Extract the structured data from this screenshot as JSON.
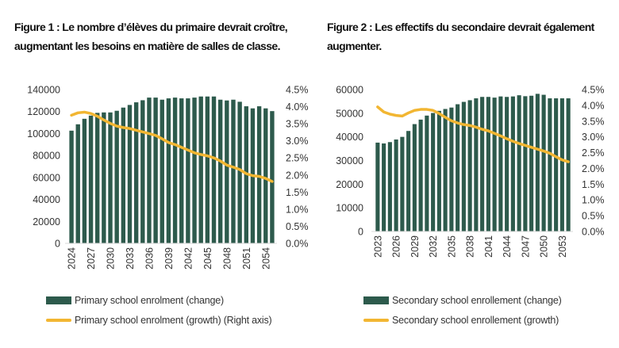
{
  "colors": {
    "bar": "#2d5a4c",
    "line": "#f2b632"
  },
  "chart_data": [
    {
      "type": "bar+line",
      "title": "Figure 1 : Le nombre d’élèves du primaire devrait croître, augmentant les besoins en matière de salles de classe.",
      "x": [
        2024,
        2025,
        2026,
        2027,
        2028,
        2029,
        2030,
        2031,
        2032,
        2033,
        2034,
        2035,
        2036,
        2037,
        2038,
        2039,
        2040,
        2041,
        2042,
        2043,
        2044,
        2045,
        2046,
        2047,
        2048,
        2049,
        2050,
        2051,
        2052,
        2053,
        2054,
        2055
      ],
      "x_tick_labels": [
        "2024",
        "2027",
        "2030",
        "2033",
        "2036",
        "2039",
        "2042",
        "2045",
        "2048",
        "2051",
        "2054"
      ],
      "y_left_ticks": [
        "0",
        "20000",
        "40000",
        "60000",
        "80000",
        "100000",
        "120000",
        "140000"
      ],
      "y_right_ticks": [
        "0.0%",
        "0.5%",
        "1.0%",
        "1.5%",
        "2.0%",
        "2.5%",
        "3.0%",
        "3.5%",
        "4.0%",
        "4.5%"
      ],
      "ylim_left": [
        0,
        140000
      ],
      "ylim_right": [
        0,
        4.5
      ],
      "grid": false,
      "legend_position": "bottom",
      "series": [
        {
          "name": "Primary school enrolment (change)",
          "type": "bar",
          "axis": "left",
          "values": [
            102600,
            108400,
            113400,
            116300,
            118800,
            119200,
            119200,
            120700,
            123600,
            126000,
            128400,
            130300,
            132700,
            132700,
            130800,
            132000,
            132700,
            132000,
            132000,
            132700,
            133700,
            133700,
            133700,
            130800,
            130100,
            130800,
            128900,
            124800,
            122900,
            124800,
            122900,
            120400
          ]
        },
        {
          "name": "Primary school enrolment (growth) (Right axis)",
          "type": "line",
          "axis": "right",
          "values": [
            3.75,
            3.82,
            3.84,
            3.8,
            3.72,
            3.61,
            3.51,
            3.43,
            3.39,
            3.36,
            3.31,
            3.26,
            3.21,
            3.16,
            3.06,
            2.95,
            2.89,
            2.81,
            2.73,
            2.65,
            2.6,
            2.56,
            2.5,
            2.41,
            2.29,
            2.23,
            2.16,
            2.04,
            1.98,
            1.96,
            1.9,
            1.81
          ]
        }
      ]
    },
    {
      "type": "bar+line",
      "title": "Figure 2 : Les effectifs du secondaire devrait également augmenter.",
      "x": [
        2023,
        2024,
        2025,
        2026,
        2027,
        2028,
        2029,
        2030,
        2031,
        2032,
        2033,
        2034,
        2035,
        2036,
        2037,
        2038,
        2039,
        2040,
        2041,
        2042,
        2043,
        2044,
        2045,
        2046,
        2047,
        2048,
        2049,
        2050,
        2051,
        2052,
        2053,
        2054
      ],
      "x_tick_labels": [
        "2023",
        "2026",
        "2029",
        "2032",
        "2035",
        "2038",
        "2041",
        "2044",
        "2047",
        "2050",
        "2053"
      ],
      "y_left_ticks": [
        "0",
        "10000",
        "20000",
        "30000",
        "40000",
        "50000",
        "60000"
      ],
      "y_right_ticks": [
        "0.0%",
        "0.5%",
        "1.0%",
        "1.5%",
        "2.0%",
        "2.5%",
        "3.0%",
        "3.5%",
        "4.0%",
        "4.5%"
      ],
      "ylim_left": [
        0,
        60000
      ],
      "ylim_right": [
        0,
        4.5
      ],
      "grid": false,
      "legend_position": "bottom",
      "series": [
        {
          "name": "Secondary school enrollement (change)",
          "type": "bar",
          "axis": "left",
          "values": [
            37570,
            37230,
            37790,
            38900,
            40000,
            42500,
            45400,
            47300,
            49000,
            50100,
            51000,
            51800,
            52400,
            53800,
            54800,
            55500,
            56300,
            56900,
            56900,
            56600,
            57100,
            56900,
            57100,
            57600,
            57200,
            57400,
            58200,
            57800,
            56300,
            56300,
            56300,
            56300
          ]
        },
        {
          "name": "Secondary school enrollement (growth)",
          "type": "line",
          "axis": "right",
          "values": [
            3.95,
            3.79,
            3.72,
            3.68,
            3.66,
            3.76,
            3.84,
            3.87,
            3.87,
            3.84,
            3.74,
            3.62,
            3.51,
            3.44,
            3.39,
            3.36,
            3.31,
            3.24,
            3.19,
            3.11,
            3.03,
            2.94,
            2.86,
            2.79,
            2.73,
            2.67,
            2.61,
            2.55,
            2.48,
            2.37,
            2.27,
            2.21
          ]
        }
      ]
    }
  ]
}
